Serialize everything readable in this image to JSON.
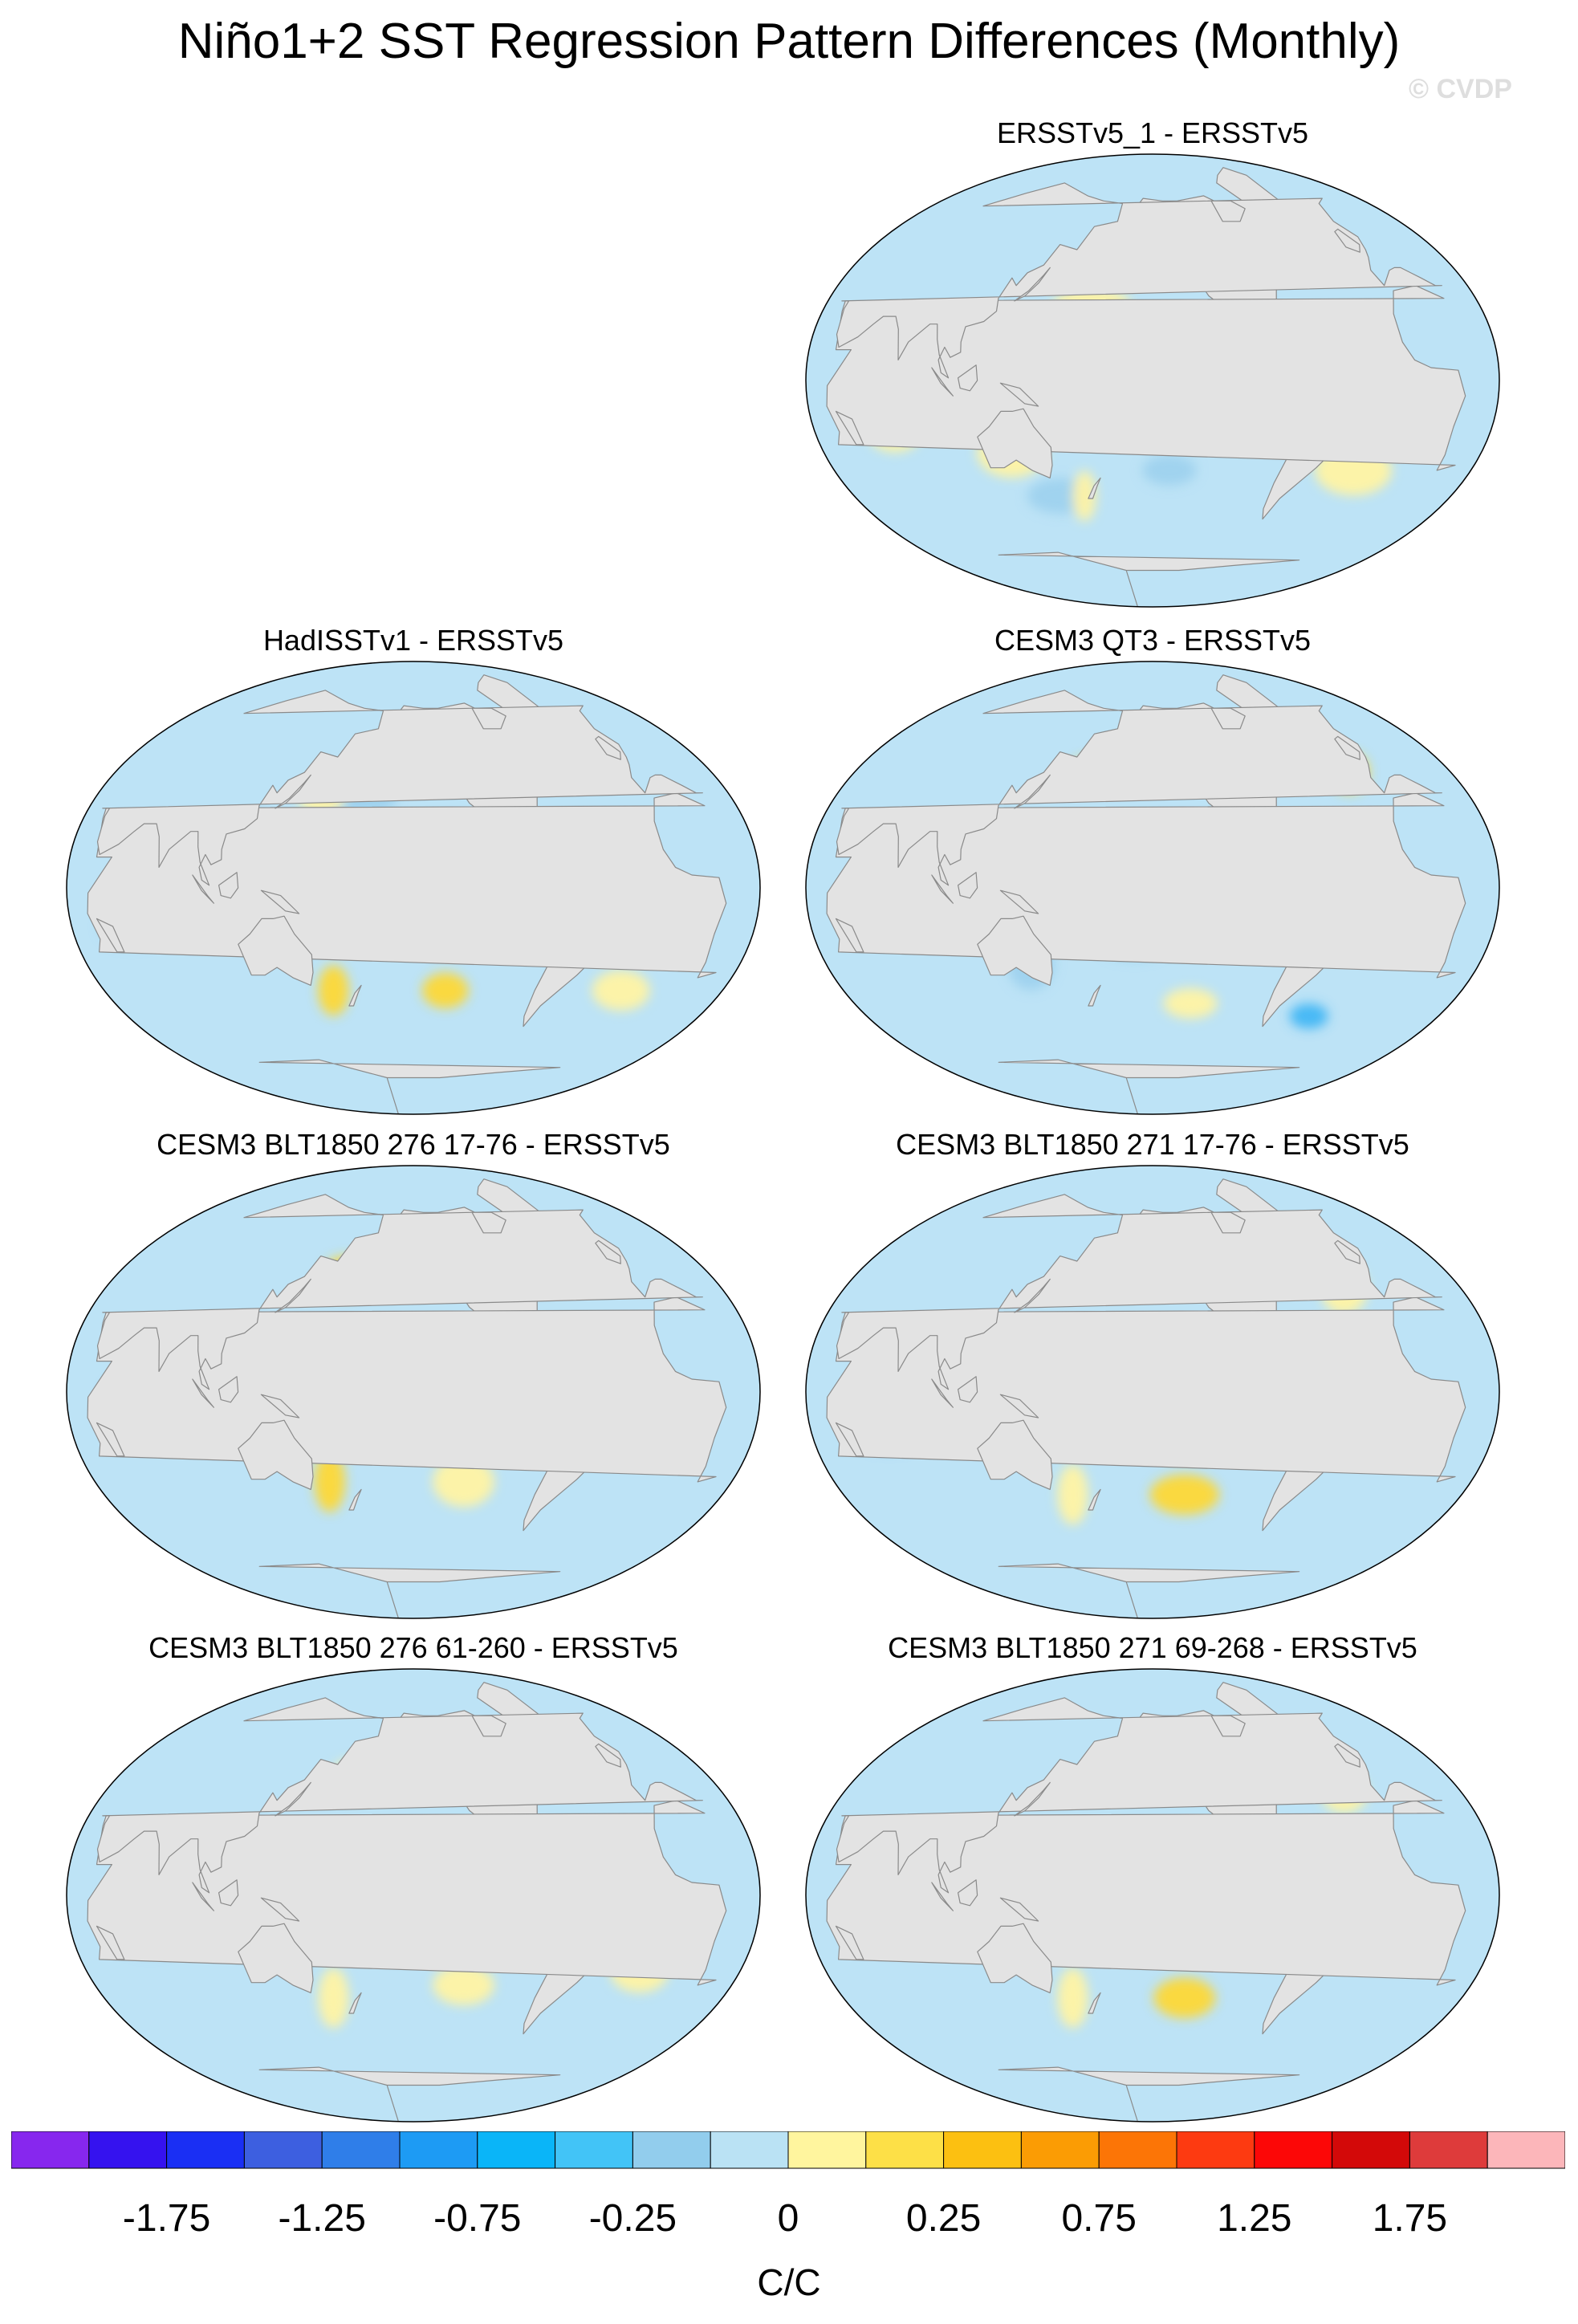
{
  "title": "Niño1+2 SST Regression Pattern Differences (Monthly)",
  "watermark": "© CVDP",
  "colors": {
    "land": "#e3e3e3",
    "coast": "#8a8a8a",
    "background": "#ffffff"
  },
  "panels": [
    {
      "title": "ERSSTv5_1 - ERSSTv5",
      "blobs": [
        [
          -95,
          -10,
          22,
          6,
          "#9ed2ee"
        ],
        [
          150,
          -45,
          18,
          7,
          "#9ed2ee"
        ],
        [
          -30,
          -35,
          20,
          10,
          "#fff3a3"
        ],
        [
          130,
          -28,
          18,
          10,
          "#fff3a3"
        ],
        [
          175,
          30,
          20,
          6,
          "#fff3a3"
        ],
        [
          165,
          -45,
          6,
          10,
          "#fff3a3"
        ],
        [
          70,
          -20,
          14,
          8,
          "#fff3a3"
        ],
        [
          -140,
          -35,
          14,
          6,
          "#9ed2ee"
        ]
      ]
    },
    {
      "title": "HadISSTv1 - ERSSTv5",
      "blobs": [
        [
          175,
          35,
          22,
          7,
          "#9ed2ee"
        ],
        [
          155,
          35,
          12,
          6,
          "#fff3a3"
        ],
        [
          -110,
          10,
          25,
          4,
          "#fff3a3"
        ],
        [
          160,
          -40,
          8,
          10,
          "#fdd835"
        ],
        [
          -130,
          -40,
          12,
          7,
          "#fdd835"
        ],
        [
          -20,
          -40,
          15,
          8,
          "#fff3a3"
        ],
        [
          140,
          -10,
          15,
          6,
          "#9ed2ee"
        ],
        [
          -150,
          -5,
          20,
          8,
          "#9ed2ee"
        ],
        [
          60,
          -15,
          16,
          8,
          "#9ed2ee"
        ]
      ]
    },
    {
      "title": "CESM3 QT3 - ERSSTv5",
      "blobs": [
        [
          170,
          45,
          12,
          6,
          "#fdd835"
        ],
        [
          -160,
          45,
          10,
          6,
          "#42b6f4"
        ],
        [
          -100,
          5,
          28,
          4,
          "#fdd835"
        ],
        [
          -20,
          45,
          10,
          8,
          "#fdd835"
        ],
        [
          -125,
          -45,
          14,
          6,
          "#fff3a3"
        ],
        [
          140,
          -30,
          12,
          10,
          "#9ed2ee"
        ],
        [
          70,
          -10,
          20,
          8,
          "#7fbde8"
        ],
        [
          -160,
          -20,
          20,
          8,
          "#9ed2ee"
        ],
        [
          -40,
          -50,
          10,
          5,
          "#42b6f4"
        ]
      ]
    },
    {
      "title": "CESM3 BLT1850 276 17-76 - ERSSTv5",
      "blobs": [
        [
          165,
          45,
          12,
          8,
          "#fdd835"
        ],
        [
          -170,
          48,
          8,
          6,
          "#42b6f4"
        ],
        [
          -40,
          52,
          12,
          6,
          "#fdd835"
        ],
        [
          -110,
          0,
          25,
          3,
          "#ffc107"
        ],
        [
          160,
          -35,
          8,
          12,
          "#fdd835"
        ],
        [
          -120,
          -35,
          16,
          10,
          "#fff3a3"
        ],
        [
          120,
          -5,
          15,
          6,
          "#fdd835"
        ],
        [
          70,
          0,
          20,
          7,
          "#7fbde8"
        ],
        [
          -160,
          -15,
          15,
          8,
          "#9ed2ee"
        ]
      ]
    },
    {
      "title": "CESM3 BLT1850 271 17-76 - ERSSTv5",
      "blobs": [
        [
          -165,
          48,
          8,
          5,
          "#42b6f4"
        ],
        [
          -105,
          0,
          30,
          4,
          "#fdd835"
        ],
        [
          -130,
          -40,
          18,
          8,
          "#fdd835"
        ],
        [
          160,
          -40,
          8,
          12,
          "#fff3a3"
        ],
        [
          -30,
          40,
          12,
          10,
          "#fff3a3"
        ],
        [
          150,
          20,
          15,
          6,
          "#9ed2ee"
        ],
        [
          70,
          -15,
          20,
          8,
          "#7fbde8"
        ],
        [
          -20,
          -20,
          15,
          8,
          "#9ed2ee"
        ]
      ]
    },
    {
      "title": "CESM3 BLT1850 276 61-260 - ERSSTv5",
      "blobs": [
        [
          -110,
          0,
          30,
          4,
          "#fdd835"
        ],
        [
          160,
          0,
          18,
          4,
          "#fdd835"
        ],
        [
          170,
          45,
          12,
          8,
          "#fff3a3"
        ],
        [
          160,
          -40,
          8,
          12,
          "#fff3a3"
        ],
        [
          -120,
          -35,
          16,
          8,
          "#fff3a3"
        ],
        [
          -150,
          20,
          20,
          7,
          "#9ed2ee"
        ],
        [
          70,
          -15,
          20,
          8,
          "#9ed2ee"
        ],
        [
          -20,
          -30,
          15,
          8,
          "#fff3a3"
        ]
      ]
    },
    {
      "title": "CESM3 BLT1850 271 69-268 - ERSSTv5",
      "blobs": [
        [
          -170,
          45,
          12,
          7,
          "#fdd835"
        ],
        [
          -140,
          45,
          8,
          5,
          "#42b6f4"
        ],
        [
          -110,
          0,
          28,
          4,
          "#fdd835"
        ],
        [
          -130,
          -40,
          16,
          8,
          "#fdd835"
        ],
        [
          160,
          -40,
          8,
          12,
          "#fff3a3"
        ],
        [
          -30,
          40,
          12,
          8,
          "#fff3a3"
        ],
        [
          150,
          15,
          18,
          7,
          "#9ed2ee"
        ],
        [
          70,
          -10,
          20,
          8,
          "#7fbde8"
        ]
      ]
    }
  ],
  "colorbar": {
    "units": "C/C",
    "colors": [
      "#8727ee",
      "#3512ef",
      "#1a2ff4",
      "#3d5fe0",
      "#2f7ee9",
      "#1d9bf4",
      "#0ab5f8",
      "#42c4f7",
      "#92cded",
      "#bae2f4",
      "#fff59e",
      "#fde047",
      "#fcc011",
      "#fb9c04",
      "#fc7506",
      "#fd3a11",
      "#fc0707",
      "#d30909",
      "#de3b3b",
      "#fcb6ba"
    ],
    "labels": [
      "-1.75",
      "-1.25",
      "-0.75",
      "-0.25",
      "0",
      "0.25",
      "0.75",
      "1.25",
      "1.75"
    ]
  }
}
